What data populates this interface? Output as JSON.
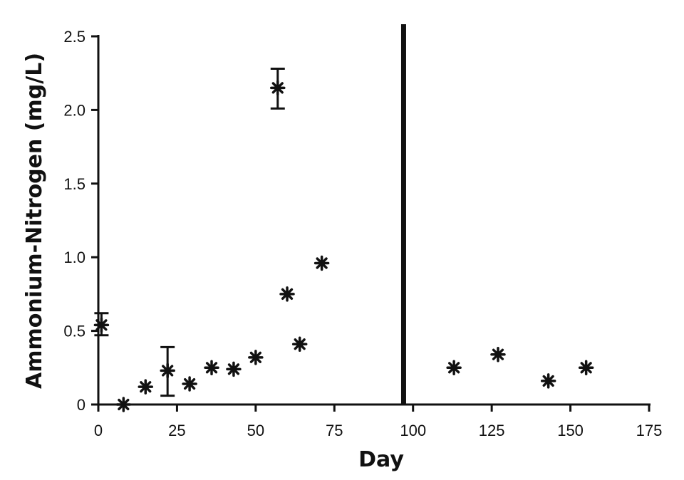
{
  "chart_data": {
    "type": "scatter",
    "xlabel": "Day",
    "ylabel": "Ammonium-Nitrogen (mg/L)",
    "xlim": [
      0,
      175
    ],
    "ylim": [
      0,
      2.5
    ],
    "x_ticks": [
      0,
      25,
      50,
      75,
      100,
      125,
      150,
      175
    ],
    "y_ticks": [
      0,
      0.5,
      1.0,
      1.5,
      2.0,
      2.5
    ],
    "x_tick_labels": [
      "0",
      "25",
      "50",
      "75",
      "100",
      "125",
      "150",
      "175"
    ],
    "y_tick_labels": [
      "0",
      "0.5",
      "1.0",
      "1.5",
      "2.0",
      "2.5"
    ],
    "grid": false,
    "marker": "asterisk",
    "colors": {
      "marker": "#111111",
      "axis": "#111111"
    },
    "vertical_reference_line_x": 97,
    "points": [
      {
        "x": 1,
        "y": 0.54,
        "err": [
          0.47,
          0.62
        ]
      },
      {
        "x": 8,
        "y": 0.0
      },
      {
        "x": 15,
        "y": 0.12
      },
      {
        "x": 22,
        "y": 0.23,
        "err": [
          0.06,
          0.39
        ]
      },
      {
        "x": 29,
        "y": 0.14
      },
      {
        "x": 36,
        "y": 0.25
      },
      {
        "x": 43,
        "y": 0.24
      },
      {
        "x": 50,
        "y": 0.32
      },
      {
        "x": 57,
        "y": 2.15,
        "err": [
          2.01,
          2.28
        ]
      },
      {
        "x": 60,
        "y": 0.75
      },
      {
        "x": 64,
        "y": 0.41
      },
      {
        "x": 71,
        "y": 0.96
      },
      {
        "x": 113,
        "y": 0.25
      },
      {
        "x": 127,
        "y": 0.34
      },
      {
        "x": 143,
        "y": 0.16
      },
      {
        "x": 155,
        "y": 0.25
      }
    ]
  }
}
